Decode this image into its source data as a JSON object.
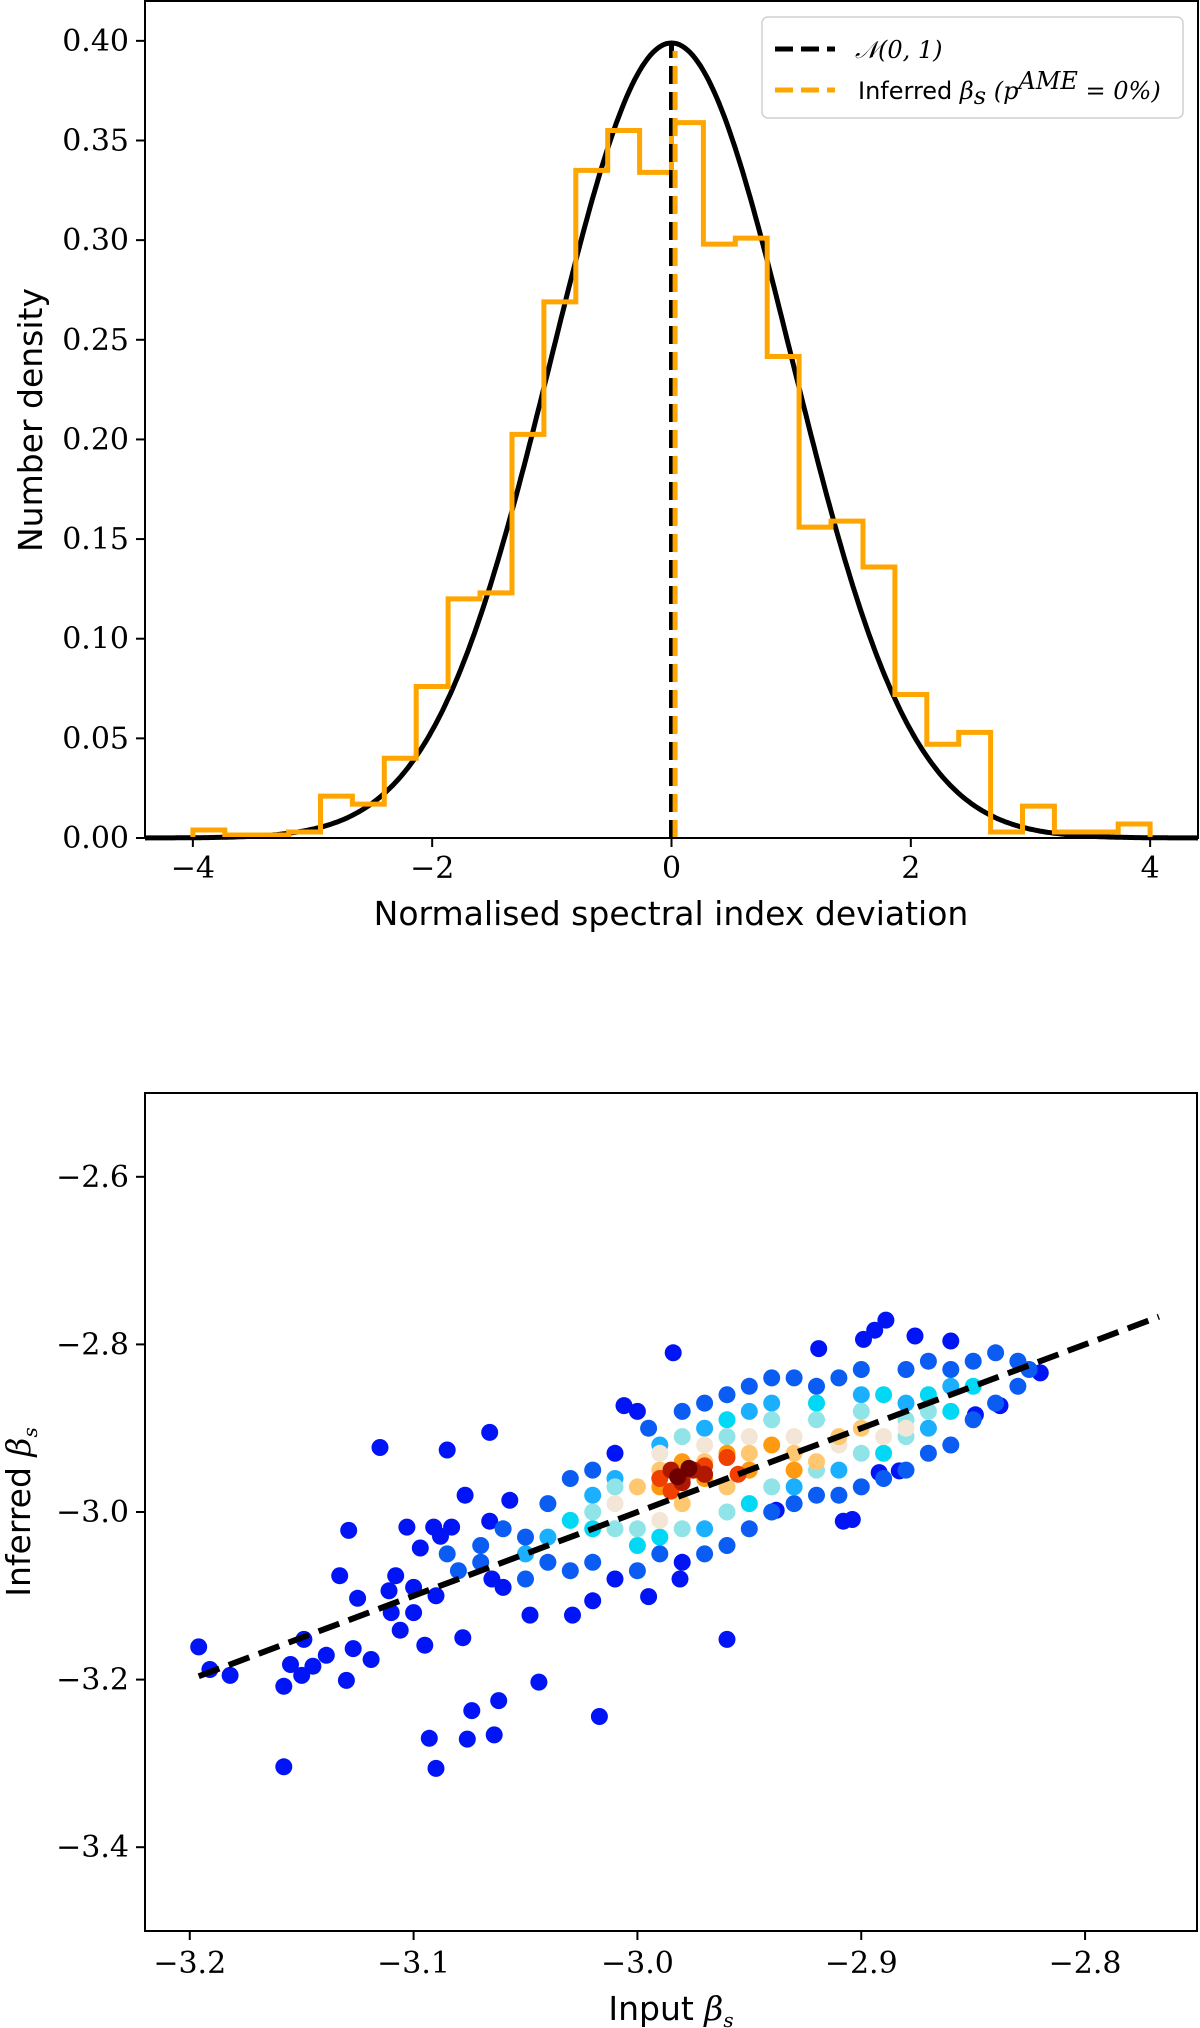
{
  "chart_data": [
    {
      "type": "bar",
      "subtype": "step-histogram-with-curve",
      "xlabel": "Normalised spectral index deviation",
      "ylabel": "Number density",
      "xlim": [
        -4.4,
        4.4
      ],
      "ylim": [
        0,
        0.42
      ],
      "xticks": [
        -4,
        -2,
        0,
        2,
        4
      ],
      "xtick_labels": [
        "−4",
        "−2",
        "0",
        "2",
        "4"
      ],
      "yticks": [
        0,
        0.05,
        0.1,
        0.15,
        0.2,
        0.25,
        0.3,
        0.35,
        0.4
      ],
      "ytick_labels": [
        "0.00",
        "0.05",
        "0.10",
        "0.15",
        "0.20",
        "0.25",
        "0.30",
        "0.35",
        "0.40"
      ],
      "grid": false,
      "legend_placement": "top-right",
      "legend": [
        {
          "label": "𝒩(0, 1)",
          "color": "#000000",
          "style": "dashed"
        },
        {
          "label_prefix": "Inferred ",
          "label_math": "β",
          "label_sub": "s",
          "label_paren": " (p",
          "label_sup": "AME",
          "label_tail": " = 0%)",
          "color": "#ffa500",
          "style": "dashed"
        }
      ],
      "curve": {
        "name": "𝒩(0, 1)",
        "mean": 0,
        "std": 1,
        "color": "#000000"
      },
      "vlines": [
        {
          "x": 0,
          "color": "#000000"
        },
        {
          "x": 0.03,
          "color": "#ffa500"
        }
      ],
      "histogram": {
        "color": "#ffa500",
        "bin_range": [
          -4,
          4
        ],
        "values": [
          0.004,
          0.0015,
          0.0015,
          0.003,
          0.021,
          0.017,
          0.04,
          0.076,
          0.12,
          0.123,
          0.2025,
          0.269,
          0.335,
          0.355,
          0.334,
          0.359,
          0.298,
          0.301,
          0.2416,
          0.156,
          0.159,
          0.136,
          0.072,
          0.047,
          0.053,
          0.003,
          0.016,
          0.003,
          0.003,
          0.007
        ]
      }
    },
    {
      "type": "scatter",
      "xlabel_prefix": "Input ",
      "xlabel_math": "β",
      "xlabel_sub": "s",
      "ylabel_prefix": "Inferred ",
      "ylabel_math": "β",
      "ylabel_sub": "s",
      "xlim": [
        -3.22,
        -2.75
      ],
      "ylim": [
        -3.5,
        -2.5
      ],
      "xticks": [
        -3.2,
        -3.1,
        -3.0,
        -2.9,
        -2.8
      ],
      "xtick_labels": [
        "−3.2",
        "−3.1",
        "−3.0",
        "−2.9",
        "−2.8"
      ],
      "yticks": [
        -2.6,
        -2.8,
        -3.0,
        -3.2,
        -3.4
      ],
      "ytick_labels": [
        "−2.6",
        "−2.8",
        "−3.0",
        "−3.2",
        "−3.4"
      ],
      "grid": false,
      "reference_line": {
        "from": [
          -3.196,
          -3.196
        ],
        "to": [
          -2.767,
          -2.767
        ],
        "color": "#000000",
        "style": "dashed"
      },
      "density_colors": [
        "#0014f5",
        "#0a5cf2",
        "#1ab0ff",
        "#00d8f5",
        "#90e4e8",
        "#f3e6d6",
        "#ffc870",
        "#ff9a10",
        "#f04000",
        "#b01800",
        "#6e0000"
      ],
      "points": [
        [
          -3.196,
          -3.161,
          0
        ],
        [
          -3.191,
          -3.188,
          0
        ],
        [
          -3.182,
          -3.195,
          0
        ],
        [
          -3.158,
          -3.208,
          0
        ],
        [
          -3.158,
          -3.304,
          0
        ],
        [
          -3.155,
          -3.182,
          0
        ],
        [
          -3.149,
          -3.152,
          0
        ],
        [
          -3.15,
          -3.195,
          0
        ],
        [
          -3.145,
          -3.184,
          0
        ],
        [
          -3.139,
          -3.171,
          0
        ],
        [
          -3.13,
          -3.201,
          0
        ],
        [
          -3.133,
          -3.076,
          0
        ],
        [
          -3.129,
          -3.022,
          0
        ],
        [
          -3.127,
          -3.163,
          0
        ],
        [
          -3.125,
          -3.103,
          0
        ],
        [
          -3.119,
          -3.176,
          0
        ],
        [
          -3.115,
          -2.923,
          0
        ],
        [
          -3.111,
          -3.094,
          0
        ],
        [
          -3.108,
          -3.076,
          0
        ],
        [
          -3.106,
          -3.141,
          0
        ],
        [
          -3.103,
          -3.018,
          0
        ],
        [
          -3.097,
          -3.043,
          0
        ],
        [
          -3.095,
          -3.159,
          0
        ],
        [
          -3.093,
          -3.27,
          0
        ],
        [
          -3.09,
          -3.306,
          0
        ],
        [
          -3.091,
          -3.018,
          0
        ],
        [
          -3.088,
          -3.029,
          0
        ],
        [
          -3.085,
          -2.926,
          0
        ],
        [
          -3.083,
          -3.018,
          0
        ],
        [
          -3.078,
          -3.15,
          0
        ],
        [
          -3.077,
          -2.98,
          0
        ],
        [
          -3.076,
          -3.271,
          0
        ],
        [
          -3.074,
          -3.237,
          0
        ],
        [
          -3.066,
          -2.905,
          0
        ],
        [
          -3.066,
          -3.011,
          0
        ],
        [
          -3.064,
          -3.266,
          0
        ],
        [
          -3.062,
          -3.225,
          0
        ],
        [
          -3.057,
          -2.986,
          0
        ],
        [
          -3.048,
          -3.123,
          0
        ],
        [
          -3.044,
          -3.203,
          0
        ],
        [
          -3.029,
          -3.123,
          0
        ],
        [
          -3.02,
          -3.106,
          0
        ],
        [
          -3.017,
          -3.244,
          0
        ],
        [
          -3.006,
          -2.873,
          0
        ],
        [
          -2.995,
          -3.101,
          0
        ],
        [
          -2.984,
          -2.81,
          0
        ],
        [
          -2.981,
          -3.08,
          0
        ],
        [
          -2.96,
          -3.152,
          0
        ],
        [
          -2.938,
          -2.998,
          0
        ],
        [
          -2.908,
          -3.011,
          0
        ],
        [
          -2.904,
          -3.009,
          0
        ],
        [
          -2.892,
          -2.953,
          0
        ],
        [
          -2.883,
          -2.951,
          0
        ],
        [
          -2.889,
          -2.771,
          0
        ],
        [
          -2.894,
          -2.783,
          0
        ],
        [
          -2.899,
          -2.794,
          0
        ],
        [
          -2.876,
          -2.79,
          0
        ],
        [
          -2.86,
          -2.796,
          0
        ],
        [
          -2.838,
          -2.873,
          0
        ],
        [
          -2.82,
          -2.834,
          0
        ],
        [
          -2.919,
          -2.805,
          0
        ],
        [
          -2.849,
          -2.884,
          0
        ],
        [
          -3.09,
          -3.1,
          0
        ],
        [
          -3.1,
          -3.12,
          0
        ],
        [
          -3.07,
          -3.04,
          1
        ],
        [
          -3.065,
          -3.08,
          0
        ],
        [
          -3.085,
          -3.05,
          1
        ],
        [
          -3.1,
          -3.09,
          0
        ],
        [
          -3.11,
          -3.12,
          0
        ],
        [
          -3.06,
          -3.02,
          1
        ],
        [
          -3.05,
          -3.03,
          1
        ],
        [
          -3.04,
          -2.99,
          1
        ],
        [
          -3.03,
          -2.96,
          1
        ],
        [
          -3.02,
          -2.95,
          1
        ],
        [
          -3.01,
          -2.93,
          0
        ],
        [
          -3.0,
          -2.88,
          0
        ],
        [
          -2.995,
          -2.9,
          1
        ],
        [
          -2.98,
          -2.88,
          1
        ],
        [
          -2.97,
          -2.87,
          1
        ],
        [
          -2.96,
          -2.86,
          1
        ],
        [
          -2.95,
          -2.85,
          1
        ],
        [
          -2.94,
          -2.84,
          1
        ],
        [
          -2.93,
          -2.84,
          1
        ],
        [
          -2.92,
          -2.85,
          1
        ],
        [
          -2.91,
          -2.84,
          1
        ],
        [
          -2.9,
          -2.83,
          1
        ],
        [
          -2.88,
          -2.83,
          1
        ],
        [
          -2.87,
          -2.82,
          1
        ],
        [
          -2.86,
          -2.83,
          1
        ],
        [
          -2.85,
          -2.82,
          1
        ],
        [
          -2.84,
          -2.81,
          1
        ],
        [
          -2.83,
          -2.82,
          1
        ],
        [
          -2.825,
          -2.83,
          1
        ],
        [
          -3.08,
          -3.07,
          1
        ],
        [
          -3.07,
          -3.06,
          1
        ],
        [
          -3.06,
          -3.09,
          0
        ],
        [
          -3.05,
          -3.08,
          1
        ],
        [
          -3.04,
          -3.06,
          1
        ],
        [
          -3.03,
          -3.07,
          1
        ],
        [
          -3.02,
          -3.06,
          1
        ],
        [
          -3.01,
          -3.08,
          0
        ],
        [
          -3.0,
          -3.07,
          1
        ],
        [
          -2.99,
          -3.05,
          1
        ],
        [
          -2.98,
          -3.06,
          0
        ],
        [
          -2.97,
          -3.05,
          1
        ],
        [
          -2.96,
          -3.04,
          1
        ],
        [
          -2.95,
          -3.02,
          1
        ],
        [
          -2.94,
          -3.0,
          1
        ],
        [
          -2.93,
          -2.99,
          1
        ],
        [
          -2.92,
          -2.98,
          1
        ],
        [
          -2.91,
          -2.98,
          1
        ],
        [
          -2.9,
          -2.97,
          1
        ],
        [
          -2.89,
          -2.96,
          1
        ],
        [
          -2.88,
          -2.95,
          1
        ],
        [
          -2.87,
          -2.93,
          1
        ],
        [
          -2.86,
          -2.92,
          1
        ],
        [
          -2.85,
          -2.89,
          1
        ],
        [
          -2.84,
          -2.87,
          1
        ],
        [
          -2.83,
          -2.85,
          1
        ],
        [
          -3.05,
          -3.05,
          2
        ],
        [
          -3.04,
          -3.03,
          2
        ],
        [
          -3.02,
          -3.02,
          3
        ],
        [
          -3.02,
          -2.98,
          2
        ],
        [
          -3.01,
          -2.96,
          2
        ],
        [
          -3.0,
          -3.04,
          3
        ],
        [
          -2.99,
          -2.92,
          2
        ],
        [
          -2.97,
          -2.9,
          2
        ],
        [
          -2.96,
          -2.89,
          3
        ],
        [
          -2.95,
          -2.88,
          2
        ],
        [
          -2.94,
          -2.87,
          2
        ],
        [
          -2.92,
          -2.87,
          3
        ],
        [
          -2.9,
          -2.86,
          2
        ],
        [
          -2.89,
          -2.86,
          3
        ],
        [
          -2.88,
          -2.87,
          2
        ],
        [
          -2.87,
          -2.86,
          3
        ],
        [
          -2.86,
          -2.85,
          2
        ],
        [
          -2.85,
          -2.85,
          3
        ],
        [
          -2.93,
          -2.97,
          2
        ],
        [
          -2.91,
          -2.95,
          2
        ],
        [
          -2.89,
          -2.93,
          3
        ],
        [
          -2.87,
          -2.9,
          2
        ],
        [
          -2.86,
          -2.88,
          3
        ],
        [
          -2.95,
          -2.99,
          3
        ],
        [
          -2.97,
          -3.02,
          2
        ],
        [
          -2.99,
          -3.03,
          3
        ],
        [
          -3.03,
          -3.01,
          3
        ],
        [
          -3.02,
          -3.0,
          4
        ],
        [
          -3.01,
          -3.02,
          4
        ],
        [
          -3.0,
          -3.02,
          4
        ],
        [
          -2.98,
          -3.02,
          4
        ],
        [
          -2.96,
          -3.0,
          4
        ],
        [
          -2.94,
          -2.97,
          4
        ],
        [
          -2.92,
          -2.95,
          4
        ],
        [
          -2.9,
          -2.93,
          4
        ],
        [
          -2.88,
          -2.91,
          4
        ],
        [
          -2.87,
          -2.88,
          4
        ],
        [
          -2.98,
          -2.91,
          4
        ],
        [
          -2.96,
          -2.91,
          4
        ],
        [
          -2.94,
          -2.89,
          4
        ],
        [
          -2.92,
          -2.89,
          4
        ],
        [
          -2.9,
          -2.88,
          4
        ],
        [
          -2.88,
          -2.89,
          4
        ],
        [
          -3.01,
          -2.97,
          4
        ],
        [
          -3.01,
          -2.99,
          5
        ],
        [
          -2.99,
          -2.93,
          5
        ],
        [
          -2.97,
          -2.92,
          5
        ],
        [
          -2.95,
          -2.91,
          5
        ],
        [
          -2.93,
          -2.91,
          5
        ],
        [
          -2.91,
          -2.92,
          5
        ],
        [
          -2.89,
          -2.91,
          5
        ],
        [
          -2.88,
          -2.9,
          5
        ],
        [
          -2.99,
          -3.01,
          5
        ],
        [
          -3.0,
          -2.97,
          6
        ],
        [
          -2.99,
          -2.95,
          6
        ],
        [
          -2.97,
          -2.94,
          6
        ],
        [
          -2.95,
          -2.93,
          6
        ],
        [
          -2.93,
          -2.93,
          6
        ],
        [
          -2.91,
          -2.91,
          6
        ],
        [
          -2.92,
          -2.94,
          6
        ],
        [
          -2.96,
          -2.97,
          6
        ],
        [
          -2.98,
          -2.99,
          6
        ],
        [
          -2.9,
          -2.9,
          6
        ],
        [
          -2.99,
          -2.97,
          7
        ],
        [
          -2.98,
          -2.94,
          7
        ],
        [
          -2.96,
          -2.93,
          7
        ],
        [
          -2.95,
          -2.95,
          7
        ],
        [
          -2.94,
          -2.92,
          7
        ],
        [
          -2.93,
          -2.95,
          7
        ],
        [
          -2.97,
          -2.96,
          7
        ],
        [
          -2.99,
          -2.96,
          8
        ],
        [
          -2.98,
          -2.96,
          8
        ],
        [
          -2.97,
          -2.945,
          8
        ],
        [
          -2.96,
          -2.935,
          8
        ],
        [
          -2.985,
          -2.975,
          8
        ],
        [
          -2.955,
          -2.955,
          8
        ],
        [
          -2.985,
          -2.95,
          9
        ],
        [
          -2.975,
          -2.95,
          9
        ],
        [
          -2.98,
          -2.965,
          9
        ],
        [
          -2.97,
          -2.955,
          9
        ],
        [
          -2.982,
          -2.958,
          10
        ],
        [
          -2.977,
          -2.948,
          10
        ]
      ]
    }
  ]
}
